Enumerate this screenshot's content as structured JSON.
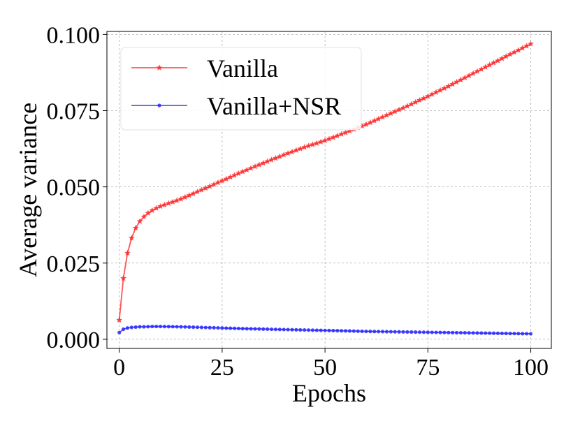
{
  "chart_data": {
    "type": "line",
    "xlabel": "Epochs",
    "ylabel": "Average variance",
    "xlim": [
      -3,
      105
    ],
    "ylim": [
      -0.003,
      0.101
    ],
    "xticks": [
      0,
      25,
      50,
      75,
      100
    ],
    "yticks": [
      0.0,
      0.025,
      0.05,
      0.075,
      0.1
    ],
    "xtick_labels": [
      "0",
      "25",
      "50",
      "75",
      "100"
    ],
    "ytick_labels": [
      "0.000",
      "0.025",
      "0.050",
      "0.075",
      "0.100"
    ],
    "grid": true,
    "legend": {
      "position": "top-left"
    },
    "series": [
      {
        "name": "Vanilla",
        "color": "#ff2a2a",
        "marker": "star",
        "points": [
          [
            0,
            0.0063
          ],
          [
            1,
            0.02
          ],
          [
            2,
            0.0283
          ],
          [
            3,
            0.0332
          ],
          [
            4,
            0.0365
          ],
          [
            5,
            0.0387
          ],
          [
            6,
            0.0402
          ],
          [
            7,
            0.0414
          ],
          [
            8,
            0.0423
          ],
          [
            9,
            0.043
          ],
          [
            10,
            0.0436
          ],
          [
            12,
            0.0446
          ],
          [
            15,
            0.046
          ],
          [
            20,
            0.049
          ],
          [
            25,
            0.052
          ],
          [
            30,
            0.055
          ],
          [
            35,
            0.0578
          ],
          [
            40,
            0.0605
          ],
          [
            45,
            0.063
          ],
          [
            50,
            0.0652
          ],
          [
            55,
            0.0678
          ],
          [
            60,
            0.0705
          ],
          [
            65,
            0.0735
          ],
          [
            70,
            0.0765
          ],
          [
            75,
            0.0797
          ],
          [
            80,
            0.083
          ],
          [
            85,
            0.0865
          ],
          [
            90,
            0.09
          ],
          [
            95,
            0.0935
          ],
          [
            100,
            0.0969
          ]
        ]
      },
      {
        "name": "Vanilla+NSR",
        "color": "#2a2aff",
        "marker": "dot",
        "points": [
          [
            0,
            0.0022
          ],
          [
            1,
            0.0033
          ],
          [
            2,
            0.0037
          ],
          [
            3,
            0.0039
          ],
          [
            4,
            0.004
          ],
          [
            5,
            0.0041
          ],
          [
            6,
            0.0041
          ],
          [
            8,
            0.0042
          ],
          [
            10,
            0.0042
          ],
          [
            15,
            0.0041
          ],
          [
            20,
            0.0039
          ],
          [
            25,
            0.0037
          ],
          [
            30,
            0.0035
          ],
          [
            40,
            0.0032
          ],
          [
            50,
            0.0029
          ],
          [
            60,
            0.0026
          ],
          [
            70,
            0.0024
          ],
          [
            80,
            0.0022
          ],
          [
            90,
            0.002
          ],
          [
            100,
            0.0018
          ]
        ]
      }
    ]
  }
}
